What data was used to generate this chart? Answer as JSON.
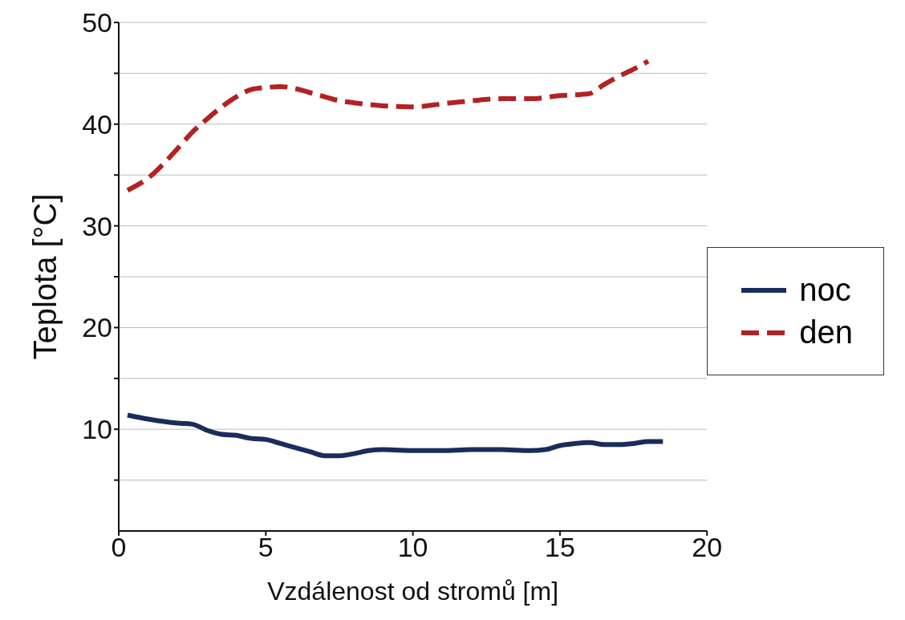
{
  "chart_data": {
    "type": "line",
    "xlabel": "Vzdálenost od stromů [m]",
    "ylabel": "Teplota [°C]",
    "xlim": [
      0,
      20
    ],
    "xticks": [
      0,
      5,
      10,
      15,
      20
    ],
    "ylim": [
      0,
      50
    ],
    "yticks": [
      {
        "value": 5,
        "label": null
      },
      10,
      {
        "value": 15,
        "label": null
      },
      20,
      {
        "value": 25,
        "label": null
      },
      30,
      {
        "value": 35,
        "label": null
      },
      40,
      {
        "value": 45,
        "label": null
      },
      50
    ],
    "grid": "y",
    "legend": "right",
    "marker": "none",
    "series": [
      {
        "name": "noc",
        "color": "#1a2c5b",
        "line_style": "solid",
        "x": [
          0.3,
          1,
          2,
          2.5,
          3,
          3.5,
          4,
          4.5,
          5,
          5.5,
          6,
          6.5,
          7,
          7.5,
          8,
          8.5,
          9,
          10,
          11,
          12,
          13,
          14,
          14.5,
          15,
          15.5,
          16,
          16.5,
          17,
          17.5,
          18,
          18.5
        ],
        "values": [
          11.4,
          11.0,
          10.6,
          10.5,
          9.9,
          9.5,
          9.4,
          9.1,
          9.0,
          8.6,
          8.2,
          7.8,
          7.4,
          7.4,
          7.6,
          7.9,
          8.0,
          7.9,
          7.9,
          8.0,
          8.0,
          7.9,
          8.0,
          8.4,
          8.6,
          8.7,
          8.5,
          8.5,
          8.6,
          8.8,
          8.8
        ]
      },
      {
        "name": "den",
        "color": "#b22222",
        "line_style": "dashed",
        "x": [
          0.3,
          1,
          2,
          2.5,
          3,
          3.5,
          4,
          4.5,
          5,
          5.5,
          6,
          6.5,
          7,
          7.5,
          8,
          9,
          10,
          11,
          12,
          13,
          14,
          15,
          16,
          16.5,
          17,
          17.5,
          18
        ],
        "values": [
          33.5,
          34.7,
          37.6,
          39.2,
          40.5,
          41.7,
          42.7,
          43.4,
          43.6,
          43.7,
          43.5,
          43.1,
          42.7,
          42.3,
          42.1,
          41.8,
          41.7,
          42.0,
          42.3,
          42.5,
          42.5,
          42.8,
          43.0,
          43.9,
          44.7,
          45.4,
          46.2
        ]
      }
    ]
  }
}
